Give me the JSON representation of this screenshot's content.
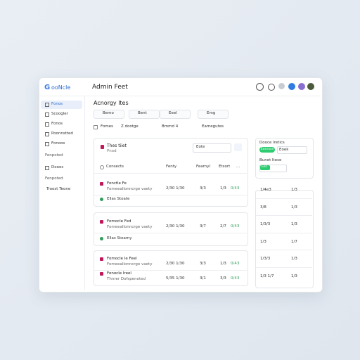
{
  "header": {
    "logo": "G",
    "brand": "ooNcle",
    "title": "Admin Feet"
  },
  "sidebar": {
    "items": [
      "Fonos",
      "Scoogler",
      "Fonos",
      "Poonnstted",
      "Fonoos"
    ],
    "section1": "Fenpoted",
    "items2": [
      "Dooos"
    ],
    "section2": "Fenpoted",
    "items3": [
      "Troost Teone"
    ]
  },
  "main": {
    "title": "Acnorgy ltes",
    "chips": [
      "Bemo",
      "Bent",
      "Eeel",
      "Emg"
    ],
    "filters": [
      "Fomes",
      "Z dootge",
      "Bmmd 4",
      "Eamegutes"
    ]
  },
  "card": {
    "title": "Thes tiiet",
    "subtitle": "Pnod",
    "select": "Eote",
    "columns": [
      "Consects",
      "Fenty",
      "Fearnyl",
      "Etsort",
      "..."
    ]
  },
  "groups": [
    {
      "rows": [
        {
          "name": "Fonctle Fe",
          "desc": "Fomeeallonncrge vaety",
          "cells": [
            "2/30 1/30",
            "3/3",
            "1/3",
            "0/43"
          ]
        },
        {
          "name": "Ellas Stoate"
        }
      ]
    },
    {
      "rows": [
        {
          "name": "Fomocle Fed",
          "desc": "Fomeeallonncrge vaety",
          "cells": [
            "2/30 1/30",
            "3/7",
            "2/7",
            "0/43"
          ]
        },
        {
          "name": "Ellas Steamy"
        }
      ]
    },
    {
      "rows": [
        {
          "name": "Fomocle Ie Feel",
          "desc": "Fomeeallonncrge vaety",
          "cells": [
            "2/30 1/30",
            "3/3",
            "1/3",
            "0/43"
          ]
        },
        {
          "name": "Fonocle Ireel",
          "desc": "Thnrer Dofspenoted",
          "cells": [
            "5/35 1/30",
            "3/1",
            "3/3",
            "0/43"
          ]
        }
      ]
    }
  ],
  "panel": {
    "title": "Dooce lretics",
    "toggle": "Eonroce",
    "input": "Eoek",
    "subtitle": "Bunet ltese",
    "button": "Eet"
  },
  "side_table": {
    "rows": [
      [
        "1/4e3",
        "1/3"
      ],
      [
        "3/8",
        "1/3"
      ],
      [
        "1/3/3",
        "1/3"
      ],
      [
        "1/3",
        "1/7"
      ],
      [
        "1/3/3",
        "1/3"
      ],
      [
        "1/3 1/7",
        "1/3"
      ]
    ]
  }
}
